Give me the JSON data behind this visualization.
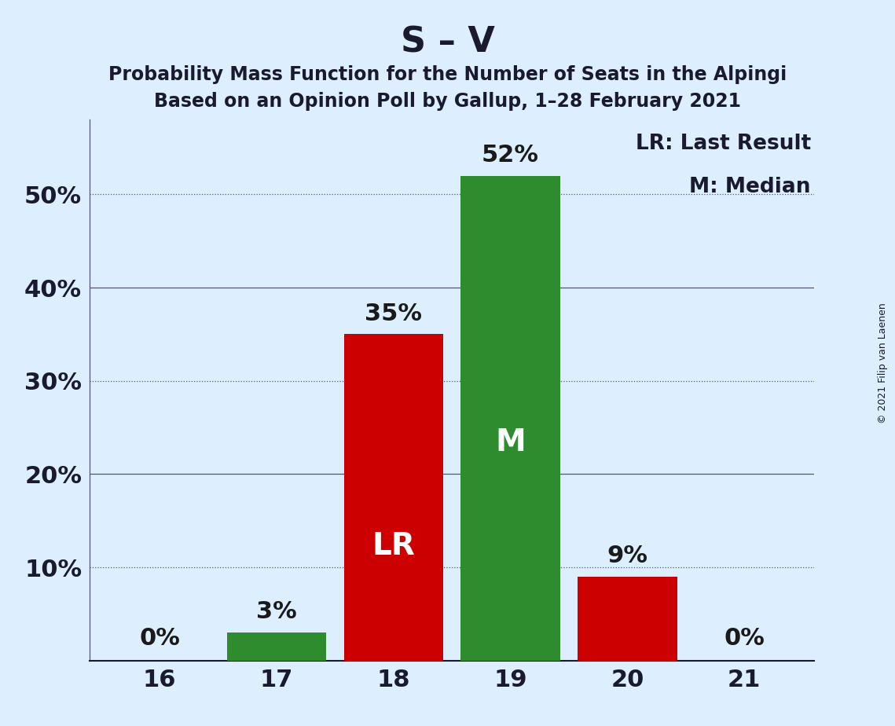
{
  "title": "S – V",
  "subtitle1": "Probability Mass Function for the Number of Seats in the Alpingi",
  "subtitle2": "Based on an Opinion Poll by Gallup, 1–28 February 2021",
  "copyright": "© 2021 Filip van Laenen",
  "categories": [
    16,
    17,
    18,
    19,
    20,
    21
  ],
  "values": [
    0,
    3,
    35,
    52,
    9,
    0
  ],
  "colors": [
    "#cc0000",
    "#2e8b2e",
    "#cc0000",
    "#2e8b2e",
    "#cc0000",
    "#cc0000"
  ],
  "last_result": 18,
  "median": 19,
  "legend_lr": "LR: Last Result",
  "legend_m": "M: Median",
  "background_color": "#ddeeff",
  "bar_label_color_inside": "#ffffff",
  "bar_label_color_outside": "#1a1a1a",
  "ylim": [
    0,
    58
  ],
  "grid_dotted": [
    10,
    30,
    50
  ],
  "grid_solid": [
    20,
    40
  ],
  "ytick_positions": [
    10,
    20,
    30,
    40,
    50
  ],
  "ytick_labels": [
    "10%",
    "20%",
    "30%",
    "40%",
    "50%"
  ],
  "title_fontsize": 32,
  "subtitle_fontsize": 17,
  "axis_fontsize": 22,
  "label_fontsize": 22,
  "inner_label_fontsize": 28,
  "legend_fontsize": 19,
  "copyright_fontsize": 9
}
